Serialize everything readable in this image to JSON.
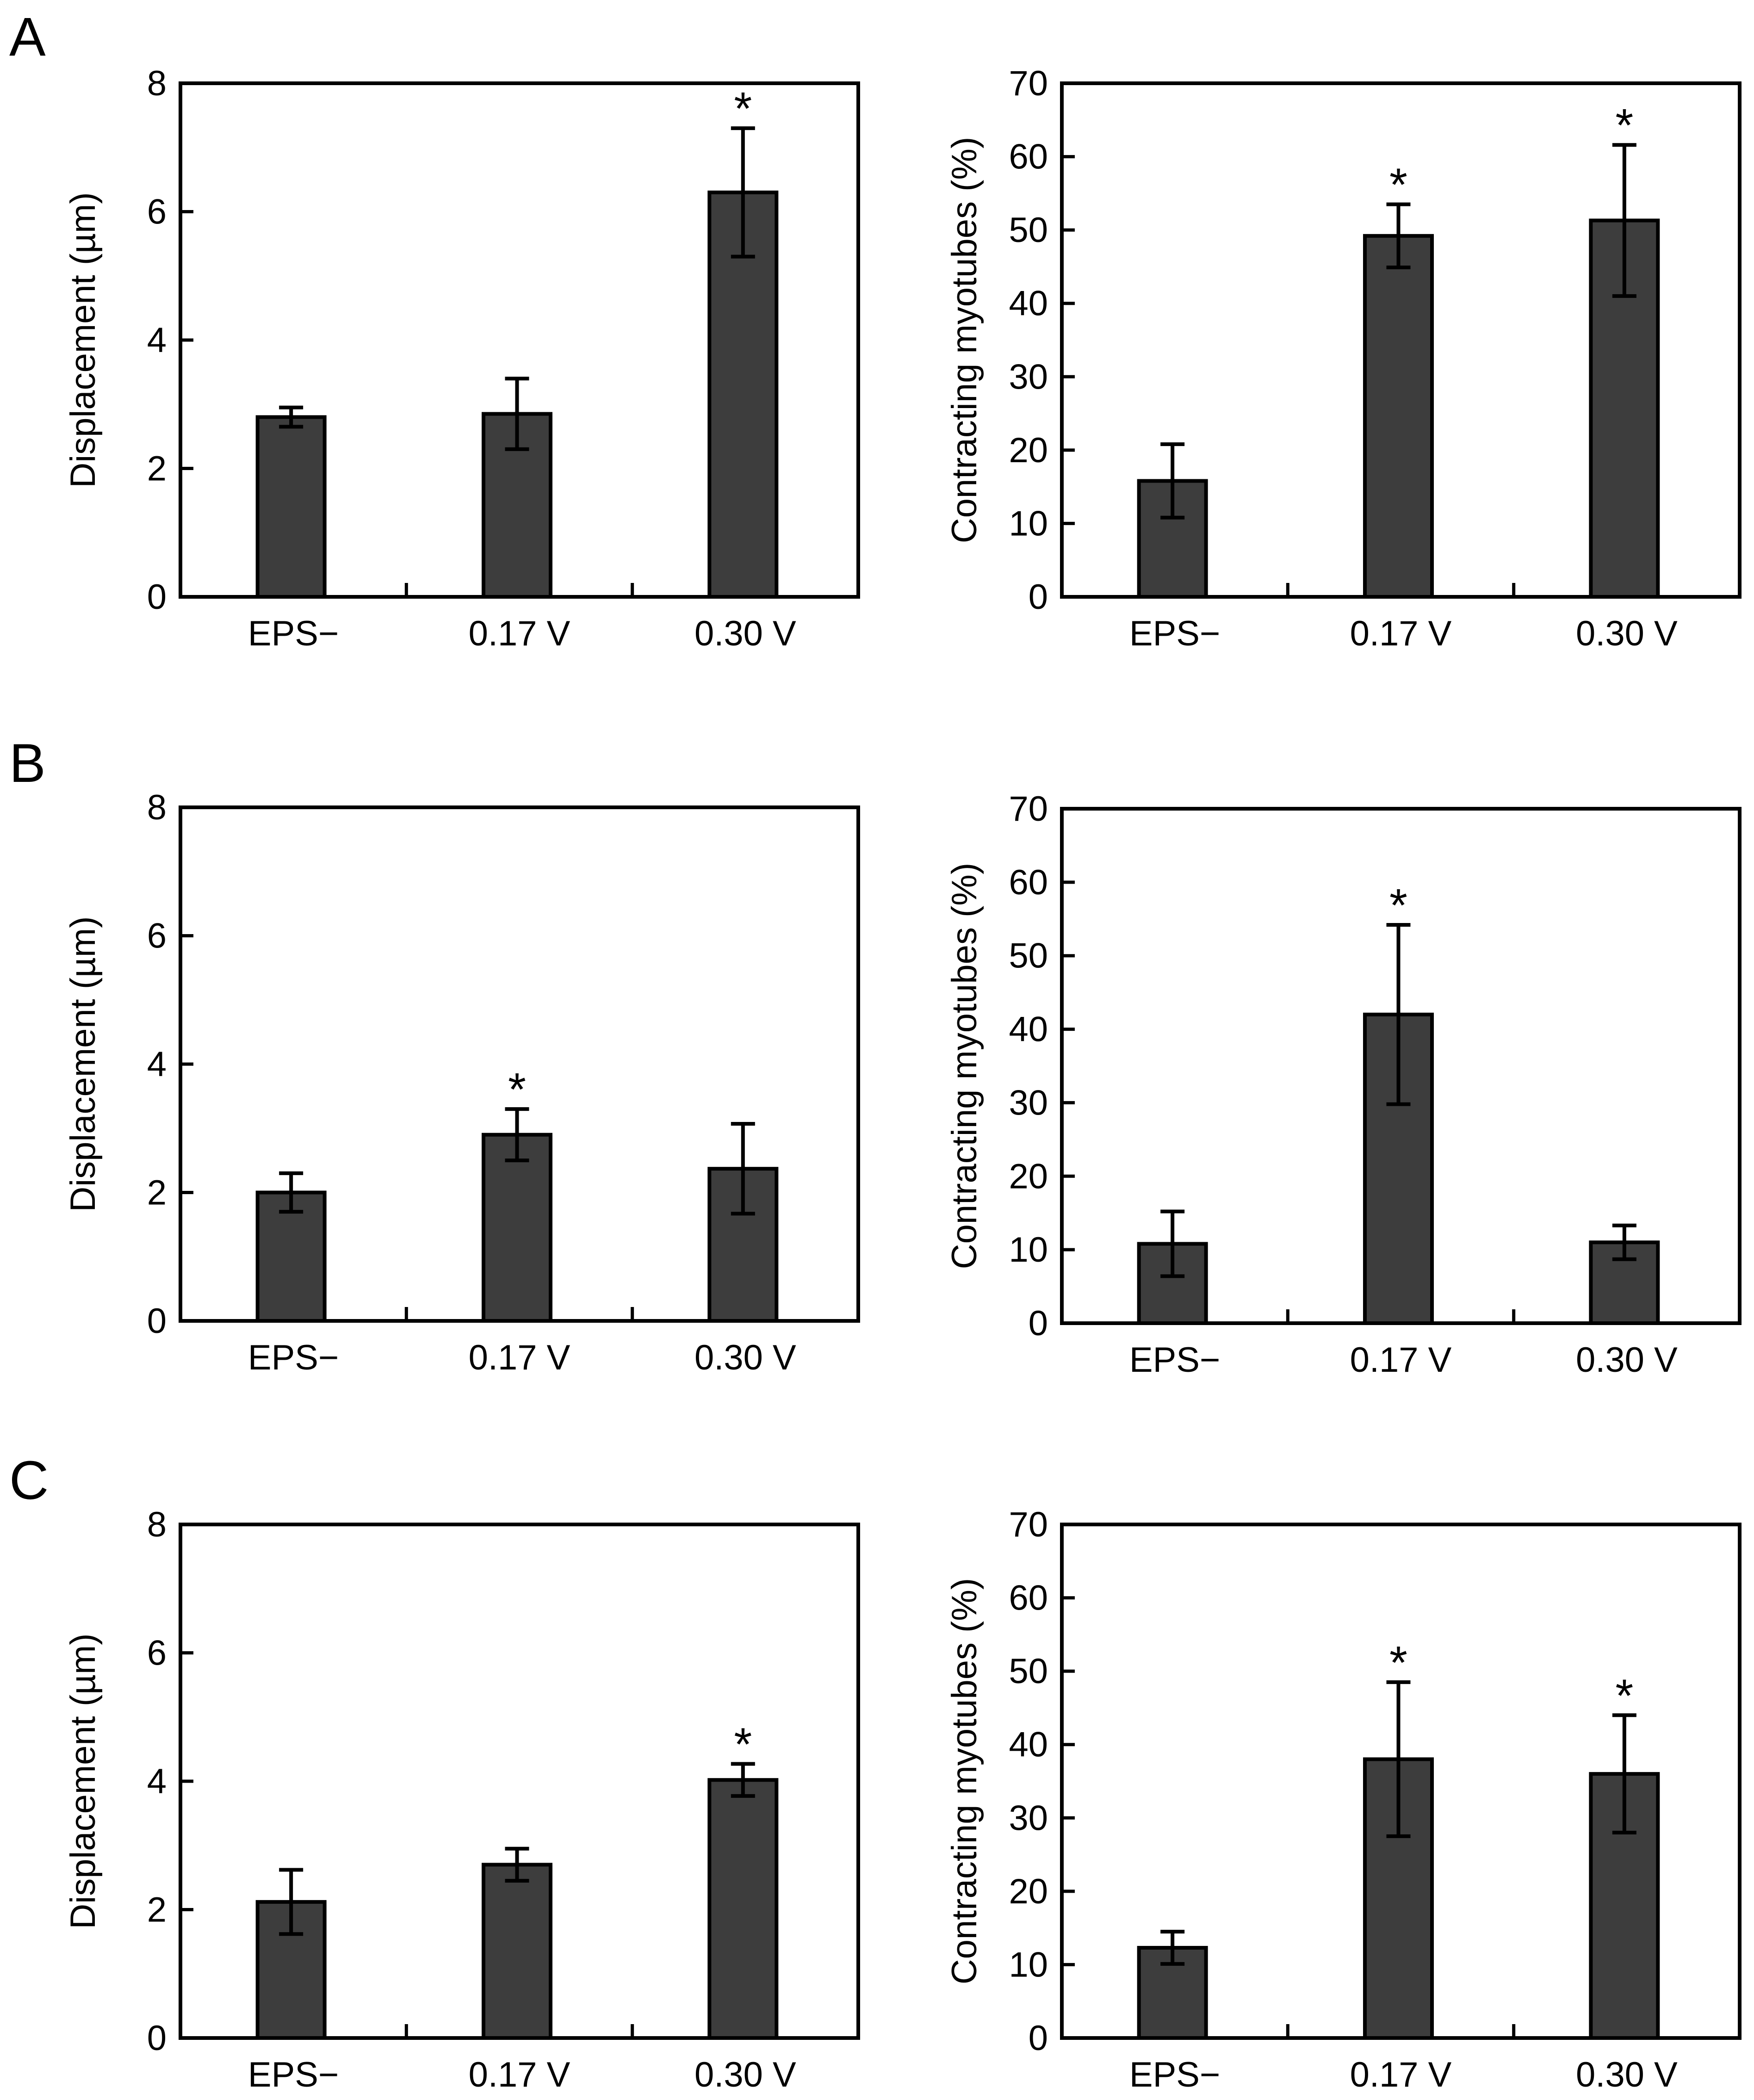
{
  "colors": {
    "bar_fill": "#3d3d3d",
    "stroke": "#000000",
    "background": "#ffffff"
  },
  "chart_data": [
    {
      "panel_label": "A",
      "type": "bar",
      "categories": [
        "EPS−",
        "0.17 V",
        "0.30 V"
      ],
      "ylabel": "Displacement (µm)",
      "ylim": [
        0,
        8
      ],
      "yticks": [
        "0",
        "2",
        "4",
        "6",
        "8"
      ],
      "values": [
        2.8,
        2.85,
        6.3
      ],
      "errors": [
        0.15,
        0.55,
        1.0
      ],
      "significance": [
        "",
        "",
        "*"
      ]
    },
    {
      "panel_label": "",
      "type": "bar",
      "categories": [
        "EPS−",
        "0.17 V",
        "0.30 V"
      ],
      "ylabel": "Contracting myotubes (%)",
      "ylim": [
        0,
        70
      ],
      "yticks": [
        "0",
        "10",
        "20",
        "30",
        "40",
        "50",
        "60",
        "70"
      ],
      "values": [
        15.8,
        49.2,
        51.3
      ],
      "errors": [
        5.0,
        4.3,
        10.3
      ],
      "significance": [
        "",
        "*",
        "*"
      ]
    },
    {
      "panel_label": "B",
      "type": "bar",
      "categories": [
        "EPS−",
        "0.17 V",
        "0.30 V"
      ],
      "ylabel": "Displacement (µm)",
      "ylim": [
        0,
        8
      ],
      "yticks": [
        "0",
        "2",
        "4",
        "6",
        "8"
      ],
      "values": [
        2.0,
        2.9,
        2.37
      ],
      "errors": [
        0.3,
        0.4,
        0.7
      ],
      "significance": [
        "",
        "*",
        ""
      ]
    },
    {
      "panel_label": "",
      "type": "bar",
      "categories": [
        "EPS−",
        "0.17 V",
        "0.30 V"
      ],
      "ylabel": "Contracting myotubes (%)",
      "ylim": [
        0,
        70
      ],
      "yticks": [
        "0",
        "10",
        "20",
        "30",
        "40",
        "50",
        "60",
        "70"
      ],
      "values": [
        10.8,
        42.0,
        11.0
      ],
      "errors": [
        4.4,
        12.2,
        2.3
      ],
      "significance": [
        "",
        "*",
        ""
      ]
    },
    {
      "panel_label": "C",
      "type": "bar",
      "categories": [
        "EPS−",
        "0.17 V",
        "0.30 V"
      ],
      "ylabel": "Displacement (µm)",
      "ylim": [
        0,
        8
      ],
      "yticks": [
        "0",
        "2",
        "4",
        "6",
        "8"
      ],
      "values": [
        2.12,
        2.7,
        4.02
      ],
      "errors": [
        0.5,
        0.25,
        0.25
      ],
      "significance": [
        "",
        "",
        "*"
      ]
    },
    {
      "panel_label": "",
      "type": "bar",
      "categories": [
        "EPS−",
        "0.17 V",
        "0.30 V"
      ],
      "ylabel": "Contracting myotubes (%)",
      "ylim": [
        0,
        70
      ],
      "yticks": [
        "0",
        "10",
        "20",
        "30",
        "40",
        "50",
        "60",
        "70"
      ],
      "values": [
        12.3,
        38.0,
        36.0
      ],
      "errors": [
        2.2,
        10.5,
        8.0
      ],
      "significance": [
        "",
        "*",
        "*"
      ]
    }
  ]
}
